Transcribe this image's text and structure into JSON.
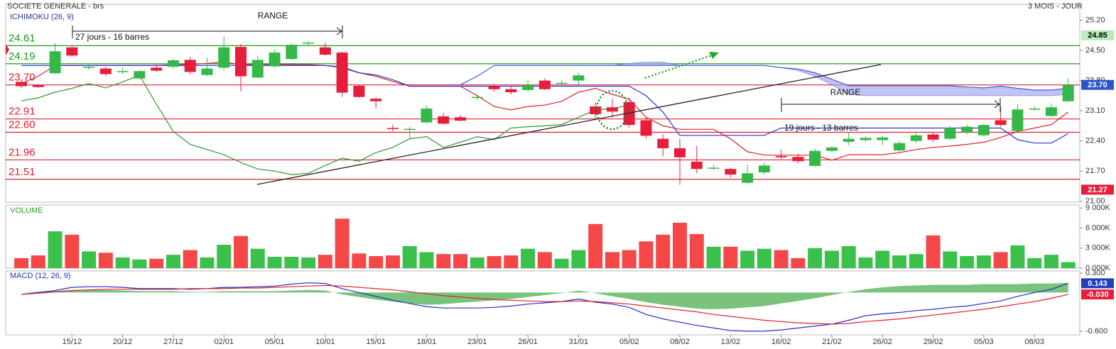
{
  "chart_data": {
    "type": "candlestick",
    "title": "SOCIETE GENERALE - brs",
    "subtitle": "3 MOIS - JOUR",
    "categories": [
      null,
      null,
      null,
      "15/12",
      null,
      null,
      "20/12",
      null,
      null,
      "27/12",
      null,
      null,
      "02/01",
      null,
      null,
      "05/01",
      null,
      null,
      "10/01",
      null,
      null,
      "15/01",
      null,
      null,
      "18/01",
      null,
      null,
      "23/01",
      null,
      null,
      "26/01",
      null,
      null,
      "31/01",
      null,
      null,
      "05/02",
      null,
      null,
      "08/02",
      null,
      null,
      "13/02",
      null,
      null,
      "16/02",
      null,
      null,
      "21/02",
      null,
      null,
      "26/02",
      null,
      null,
      "29/02",
      null,
      null,
      "05/03",
      null,
      null,
      "08/03",
      null,
      null
    ],
    "price": {
      "label": "ICHIMOKU (26, 9)",
      "ylim": [
        20.98,
        25.57
      ],
      "yticks": [
        {
          "value": 25.2,
          "label": "25.20"
        },
        {
          "value": 24.5,
          "label": "24.50"
        },
        {
          "value": 23.8,
          "label": "23.80"
        },
        {
          "value": 23.1,
          "label": "23.10"
        },
        {
          "value": 22.4,
          "label": "22.40"
        },
        {
          "value": 21.7,
          "label": "21.70"
        },
        {
          "value": 21,
          "label": "21.00"
        }
      ],
      "up_color": "#35b84a",
      "down_color": "#e61e3c",
      "open": [
        23.77,
        23.7,
        23.97,
        24.57,
        24.1,
        24.08,
        24.0,
        23.85,
        24.1,
        24.12,
        24.28,
        23.93,
        24.1,
        24.58,
        23.87,
        24.13,
        24.3,
        24.67,
        24.57,
        24.45,
        23.68,
        23.38,
        22.7,
        22.67,
        22.83,
        22.97,
        22.95,
        23.4,
        23.67,
        23.6,
        23.58,
        23.8,
        23.75,
        23.8,
        23.2,
        23.18,
        23.3,
        22.88,
        22.45,
        22.23,
        21.92,
        21.78,
        21.75,
        21.43,
        21.67,
        22.05,
        22.03,
        21.82,
        22.17,
        22.38,
        22.42,
        22.42,
        22.18,
        22.4,
        22.55,
        22.45,
        22.6,
        22.53,
        22.88,
        22.63,
        23.15,
        22.98,
        23.32
      ],
      "high": [
        23.82,
        23.72,
        24.67,
        24.6,
        24.18,
        24.12,
        24.1,
        24.05,
        24.2,
        24.32,
        24.35,
        24.33,
        24.82,
        24.65,
        24.38,
        24.52,
        24.67,
        24.72,
        24.68,
        24.47,
        23.7,
        23.4,
        22.78,
        22.73,
        23.22,
        23.05,
        23.0,
        23.48,
        23.7,
        23.65,
        23.82,
        23.85,
        23.82,
        23.98,
        23.3,
        23.38,
        23.4,
        22.95,
        22.55,
        22.45,
        22.28,
        21.85,
        21.78,
        21.85,
        21.9,
        22.2,
        22.1,
        22.22,
        22.28,
        22.6,
        22.5,
        22.52,
        22.4,
        22.58,
        22.6,
        22.75,
        22.78,
        22.8,
        23.2,
        23.25,
        23.2,
        23.27,
        23.85
      ],
      "low": [
        23.62,
        23.63,
        23.95,
        24.35,
        24.05,
        23.9,
        23.95,
        23.83,
        24.0,
        24.08,
        23.95,
        23.9,
        24.05,
        23.55,
        23.85,
        24.1,
        24.28,
        24.62,
        24.38,
        23.42,
        23.4,
        23.15,
        22.62,
        22.45,
        22.8,
        22.78,
        22.85,
        23.35,
        23.55,
        23.48,
        23.55,
        23.58,
        23.7,
        23.68,
        22.88,
        22.95,
        22.7,
        22.45,
        22.05,
        21.38,
        21.65,
        21.72,
        21.55,
        21.4,
        21.62,
        21.98,
        21.88,
        21.8,
        22.15,
        22.3,
        22.38,
        22.3,
        22.15,
        22.35,
        22.38,
        22.42,
        22.55,
        22.5,
        22.73,
        22.6,
        23.1,
        22.95,
        23.3
      ],
      "close": [
        23.67,
        23.65,
        24.48,
        24.38,
        24.12,
        23.95,
        24.02,
        24.02,
        24.03,
        24.27,
        24.0,
        24.08,
        24.57,
        23.9,
        24.28,
        24.45,
        24.63,
        24.68,
        24.4,
        23.52,
        23.42,
        23.32,
        22.68,
        22.68,
        23.15,
        22.8,
        22.87,
        23.42,
        23.6,
        23.53,
        23.7,
        23.6,
        23.75,
        23.92,
        23.02,
        23.08,
        22.77,
        22.52,
        22.23,
        22.02,
        21.75,
        21.78,
        21.62,
        21.65,
        21.83,
        22.02,
        21.93,
        22.17,
        22.25,
        22.45,
        22.47,
        22.48,
        22.35,
        22.53,
        22.43,
        22.7,
        22.73,
        22.77,
        22.77,
        23.13,
        23.15,
        23.18,
        23.7
      ],
      "series": [
        {
          "color": "#e0202c",
          "values": [
            23.73,
            23.9,
            24.15,
            24.15,
            24.15,
            24.15,
            24.15,
            24.15,
            24.15,
            24.17,
            24.17,
            24.2,
            24.23,
            24.17,
            24.17,
            24.17,
            24.17,
            24.17,
            24.15,
            24.12,
            23.98,
            23.9,
            23.78,
            23.67,
            23.67,
            23.67,
            23.67,
            23.45,
            23.2,
            23.12,
            23.2,
            23.23,
            23.32,
            23.53,
            23.62,
            23.48,
            23.37,
            22.95,
            22.75,
            22.67,
            22.67,
            22.67,
            22.45,
            22.15,
            22.07,
            22.07,
            22.07,
            22.07,
            21.95,
            22.08,
            22.08,
            22.08,
            22.13,
            22.2,
            22.25,
            22.28,
            22.32,
            22.37,
            22.48,
            22.62,
            22.7,
            22.78,
            23.07
          ]
        },
        {
          "color": "#2233dd",
          "values": [
            24.15,
            24.15,
            24.15,
            24.15,
            24.15,
            24.15,
            24.15,
            24.15,
            24.15,
            24.15,
            24.15,
            24.15,
            24.15,
            24.15,
            24.15,
            24.15,
            24.15,
            24.15,
            24.15,
            24.1,
            23.98,
            23.93,
            23.82,
            23.67,
            23.67,
            23.67,
            23.67,
            23.67,
            23.67,
            23.67,
            23.67,
            23.67,
            23.67,
            23.67,
            23.67,
            23.67,
            23.67,
            23.45,
            23.07,
            22.53,
            22.53,
            22.53,
            22.53,
            22.53,
            22.53,
            22.7,
            22.7,
            22.7,
            22.7,
            22.7,
            22.7,
            22.7,
            22.7,
            22.7,
            22.7,
            22.7,
            22.7,
            22.7,
            22.7,
            22.43,
            22.35,
            22.35,
            22.57
          ]
        },
        {
          "color": "#2e9a2e",
          "values": [
            23.33,
            23.4,
            23.53,
            23.62,
            23.73,
            23.63,
            23.77,
            23.92,
            23.25,
            22.62,
            22.32,
            22.2,
            22.08,
            21.9,
            21.75,
            21.7,
            21.62,
            21.65,
            21.83,
            22.0,
            21.93,
            22.13,
            22.25,
            22.45,
            22.5,
            22.25,
            22.37,
            22.5,
            22.43,
            22.7,
            22.73,
            22.75,
            22.78,
            22.95,
            23.12,
            23.15,
            23.23,
            null,
            null,
            null,
            null,
            null,
            null,
            null,
            null,
            null,
            null,
            null,
            null,
            null,
            null,
            null,
            null,
            null,
            null,
            null,
            null,
            null,
            null,
            null,
            null,
            null,
            null
          ]
        }
      ],
      "cloud": {
        "color": "#a9a9ee",
        "line_color": "#3a5bd8",
        "a": [
          null,
          null,
          null,
          null,
          null,
          null,
          null,
          null,
          null,
          null,
          null,
          null,
          null,
          null,
          null,
          null,
          null,
          null,
          null,
          null,
          null,
          null,
          null,
          null,
          null,
          null,
          23.7,
          23.9,
          24.15,
          24.15,
          24.15,
          24.15,
          24.15,
          24.15,
          24.15,
          24.15,
          24.15,
          24.15,
          24.15,
          24.15,
          24.15,
          24.15,
          24.15,
          24.15,
          24.15,
          24.1,
          24.07,
          23.98,
          23.83,
          23.68,
          23.68,
          23.68,
          23.68,
          23.68,
          23.68,
          23.68,
          23.65,
          23.63,
          23.67,
          23.62,
          23.58,
          23.58,
          23.62
        ],
        "b": [
          null,
          null,
          null,
          null,
          null,
          null,
          null,
          null,
          null,
          null,
          null,
          null,
          null,
          null,
          null,
          null,
          null,
          null,
          null,
          null,
          null,
          null,
          null,
          null,
          null,
          null,
          null,
          null,
          24.15,
          24.15,
          24.15,
          24.15,
          24.15,
          24.15,
          24.15,
          24.15,
          24.2,
          24.23,
          24.23,
          24.15,
          24.15,
          24.15,
          24.15,
          24.15,
          24.15,
          24.1,
          24.03,
          23.9,
          23.7,
          23.48,
          23.45,
          23.45,
          23.45,
          23.45,
          23.45,
          23.45,
          23.45,
          23.45,
          23.45,
          23.45,
          23.45,
          23.45,
          23.48
        ]
      },
      "levels": [
        {
          "value": 24.61,
          "color": "#1f9a1f"
        },
        {
          "value": 24.19,
          "color": "#1f9a1f"
        },
        {
          "value": 23.7,
          "label": "23.70",
          "color": "#e0202c"
        },
        {
          "value": 22.91,
          "color": "#e0202c"
        },
        {
          "value": 22.6,
          "label": "22.60",
          "color": "#e0202c"
        },
        {
          "value": 21.96,
          "color": "#e0202c"
        },
        {
          "value": 21.51,
          "color": "#e0202c"
        }
      ],
      "markers": [
        {
          "value": 24.85,
          "color": "#b9ecb9",
          "text_color": "#000000"
        },
        {
          "value": 23.7,
          "label": "23.70",
          "color": "#2b55c8",
          "text_color": "#ffffff"
        },
        {
          "value": 21.27,
          "color": "#e61e3c",
          "text_color": "#ffffff"
        }
      ],
      "annotations": [
        "RANGE",
        "27 jours - 16 barres",
        "RANGE",
        "19 jours - 13 barres"
      ]
    },
    "volume": {
      "label": "VOLUME",
      "ylim": [
        0,
        9440
      ],
      "yticks": [
        {
          "value": 9000,
          "label": "9 000K"
        },
        {
          "value": 6000,
          "label": "6 000K"
        },
        {
          "value": 3000,
          "label": "3 000K"
        },
        {
          "value": 0,
          "label": "0.000K"
        }
      ],
      "up_color": "#3cc04c",
      "down_color": "#f44848",
      "values": [
        1500,
        1900,
        5500,
        5000,
        2500,
        2300,
        1600,
        1300,
        1400,
        2000,
        2700,
        1600,
        3500,
        4800,
        2900,
        1700,
        1700,
        1600,
        2000,
        7400,
        2200,
        1800,
        1900,
        3300,
        2400,
        2100,
        2100,
        1600,
        1800,
        1900,
        2900,
        2400,
        1400,
        2700,
        6600,
        2400,
        2700,
        4000,
        5000,
        6800,
        5100,
        3200,
        3200,
        2600,
        2900,
        2700,
        1500,
        3000,
        2600,
        3300,
        1600,
        2600,
        1900,
        2100,
        4900,
        2500,
        1800,
        1900,
        2400,
        3400,
        1500,
        2000,
        900
      ]
    },
    "macd": {
      "label": "MACD (12, 26, 9)",
      "ylim": [
        -0.656,
        0.334
      ],
      "yticks": [
        {
          "value": 0.3,
          "label": "0.300"
        },
        {
          "value": -0.6,
          "label": "-0.600"
        }
      ],
      "histogram": {
        "color": "#4caf50",
        "values": [
          0,
          0.01,
          0.02,
          0.04,
          0.04,
          0.04,
          0.03,
          0.02,
          0.02,
          0.02,
          0.01,
          0.01,
          0.02,
          0.02,
          0.02,
          0.02,
          0.03,
          0.04,
          0.03,
          -0.03,
          -0.07,
          -0.11,
          -0.14,
          -0.17,
          -0.19,
          -0.18,
          -0.16,
          -0.14,
          -0.12,
          -0.1,
          -0.07,
          -0.04,
          -0.01,
          0.03,
          -0.01,
          -0.06,
          -0.1,
          -0.15,
          -0.19,
          -0.22,
          -0.25,
          -0.26,
          -0.25,
          -0.23,
          -0.21,
          -0.17,
          -0.13,
          -0.09,
          -0.04,
          0.01,
          0.05,
          0.08,
          0.1,
          0.11,
          0.12,
          0.12,
          0.12,
          0.13,
          0.13,
          0.13,
          0.14,
          0.14,
          0.15
        ]
      },
      "series": [
        {
          "color": "#1f2fd0",
          "values": [
            -0.03,
            0.0,
            0.03,
            0.08,
            0.09,
            0.09,
            0.08,
            0.06,
            0.06,
            0.06,
            0.05,
            0.06,
            0.08,
            0.08,
            0.09,
            0.1,
            0.13,
            0.15,
            0.14,
            0.06,
            0.0,
            -0.06,
            -0.12,
            -0.17,
            -0.22,
            -0.24,
            -0.24,
            -0.24,
            -0.23,
            -0.21,
            -0.18,
            -0.16,
            -0.14,
            -0.1,
            -0.15,
            -0.18,
            -0.23,
            -0.34,
            -0.41,
            -0.46,
            -0.51,
            -0.55,
            -0.59,
            -0.6,
            -0.6,
            -0.58,
            -0.55,
            -0.52,
            -0.49,
            -0.43,
            -0.36,
            -0.33,
            -0.31,
            -0.28,
            -0.26,
            -0.23,
            -0.21,
            -0.17,
            -0.13,
            -0.06,
            0.0,
            0.05,
            0.143
          ]
        },
        {
          "color": "#e0202c",
          "values": [
            -0.03,
            -0.01,
            0.01,
            0.03,
            0.04,
            0.05,
            0.05,
            0.05,
            0.05,
            0.05,
            0.06,
            0.06,
            0.06,
            0.07,
            0.07,
            0.08,
            0.09,
            0.1,
            0.11,
            0.1,
            0.08,
            0.06,
            0.04,
            0.01,
            -0.02,
            -0.05,
            -0.07,
            -0.09,
            -0.11,
            -0.12,
            -0.13,
            -0.14,
            -0.14,
            -0.13,
            -0.14,
            -0.16,
            -0.18,
            -0.21,
            -0.24,
            -0.27,
            -0.3,
            -0.34,
            -0.37,
            -0.4,
            -0.43,
            -0.45,
            -0.47,
            -0.48,
            -0.49,
            -0.48,
            -0.45,
            -0.43,
            -0.41,
            -0.38,
            -0.35,
            -0.32,
            -0.29,
            -0.26,
            -0.22,
            -0.18,
            -0.14,
            -0.09,
            -0.03
          ]
        }
      ],
      "markers": [
        {
          "value": 0.143,
          "color": "#1f3fbf",
          "text_color": "#ffffff"
        },
        {
          "value": -0.03,
          "label": "-0.030",
          "color": "#e61e3c",
          "text_color": "#ffffff"
        }
      ]
    }
  }
}
